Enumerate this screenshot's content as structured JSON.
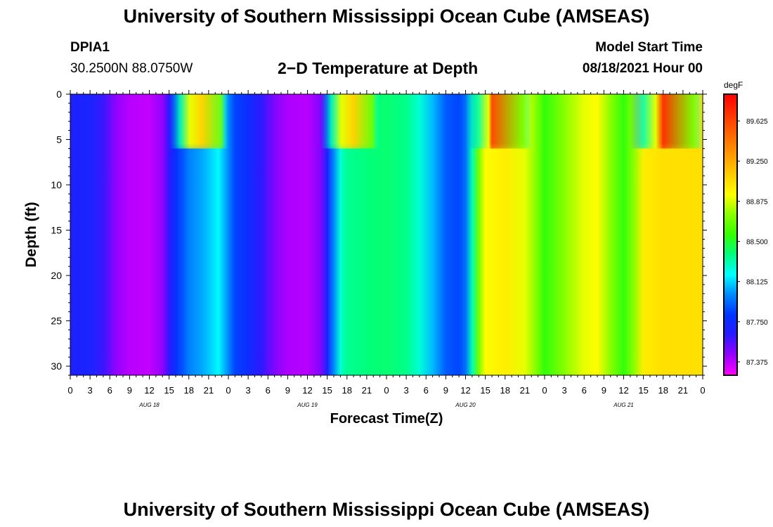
{
  "titles": {
    "top": "University of Southern Mississippi Ocean Cube (AMSEAS)",
    "bottom": "University of Southern Mississippi Ocean Cube (AMSEAS)"
  },
  "header": {
    "station": "DPIA1",
    "coords": "30.2500N  88.0750W",
    "plot_title": "2−D Temperature at Depth",
    "model_start_label": "Model Start Time",
    "model_start_value": "08/18/2021 Hour 00"
  },
  "chart_data": {
    "type": "heatmap",
    "title": "2−D Temperature at Depth",
    "xlabel": "Forecast Time(Z)",
    "ylabel": "Depth (ft)",
    "x_unit": "forecast hour",
    "xlim": [
      0,
      96
    ],
    "ylim": [
      31,
      0
    ],
    "x_ticks": [
      0,
      3,
      6,
      9,
      12,
      15,
      18,
      21,
      24,
      27,
      30,
      33,
      36,
      39,
      42,
      45,
      48,
      51,
      54,
      57,
      60,
      63,
      66,
      69,
      72,
      75,
      78,
      81,
      84,
      87,
      90,
      93,
      96
    ],
    "x_tick_labels": [
      "0",
      "3",
      "6",
      "9",
      "12",
      "15",
      "18",
      "21",
      "0",
      "3",
      "6",
      "9",
      "12",
      "15",
      "18",
      "21",
      "0",
      "3",
      "6",
      "9",
      "12",
      "15",
      "18",
      "21",
      "0",
      "3",
      "6",
      "9",
      "12",
      "15",
      "18",
      "21",
      "0"
    ],
    "day_labels": [
      {
        "label": "AUG 18",
        "hour": 12
      },
      {
        "label": "AUG 19",
        "hour": 36
      },
      {
        "label": "AUG 20",
        "hour": 60
      },
      {
        "label": "AUG 21",
        "hour": 84
      }
    ],
    "y_ticks": [
      0,
      5,
      10,
      15,
      20,
      25,
      30
    ],
    "colorbar": {
      "unit": "degF",
      "min": 87.25,
      "max": 89.875,
      "labels": [
        "89.625",
        "89.250",
        "88.875",
        "88.500",
        "88.125",
        "87.750",
        "87.375"
      ],
      "label_values": [
        89.625,
        89.25,
        88.875,
        88.5,
        88.125,
        87.75,
        87.375
      ],
      "colors": [
        "#ff00ff",
        "#9900ff",
        "#2a1aff",
        "#0033ff",
        "#0088ff",
        "#00ffff",
        "#00ff80",
        "#33ff00",
        "#88ff00",
        "#ffff00",
        "#ffcc00",
        "#ff9900",
        "#ff6600",
        "#ff3300",
        "#ff0000"
      ]
    },
    "time_profile": [
      {
        "t": 0,
        "v": 87.68
      },
      {
        "t": 3,
        "v": 87.7
      },
      {
        "t": 5,
        "v": 87.6
      },
      {
        "t": 7,
        "v": 87.45
      },
      {
        "t": 9,
        "v": 87.38
      },
      {
        "t": 12,
        "v": 87.36
      },
      {
        "t": 14,
        "v": 87.45
      },
      {
        "t": 15,
        "v": 87.62
      },
      {
        "t": 16,
        "v": 87.78
      },
      {
        "t": 17,
        "v": 87.88
      },
      {
        "t": 18,
        "v": 87.98
      },
      {
        "t": 20,
        "v": 88.05
      },
      {
        "t": 21,
        "v": 88.1
      },
      {
        "t": 22.5,
        "v": 88.18
      },
      {
        "t": 24,
        "v": 88.0
      },
      {
        "t": 25,
        "v": 87.85
      },
      {
        "t": 27,
        "v": 87.75
      },
      {
        "t": 29,
        "v": 87.62
      },
      {
        "t": 31,
        "v": 87.48
      },
      {
        "t": 33,
        "v": 87.4
      },
      {
        "t": 36,
        "v": 87.38
      },
      {
        "t": 38,
        "v": 87.48
      },
      {
        "t": 39,
        "v": 87.7
      },
      {
        "t": 40,
        "v": 88.0
      },
      {
        "t": 41,
        "v": 88.25
      },
      {
        "t": 42,
        "v": 88.35
      },
      {
        "t": 45,
        "v": 88.38
      },
      {
        "t": 48,
        "v": 88.4
      },
      {
        "t": 51,
        "v": 88.36
      },
      {
        "t": 53,
        "v": 88.25
      },
      {
        "t": 55,
        "v": 88.08
      },
      {
        "t": 57,
        "v": 87.9
      },
      {
        "t": 59,
        "v": 87.85
      },
      {
        "t": 60,
        "v": 87.95
      },
      {
        "t": 61,
        "v": 88.3
      },
      {
        "t": 62,
        "v": 88.7
      },
      {
        "t": 63,
        "v": 88.95
      },
      {
        "t": 66,
        "v": 89.0
      },
      {
        "t": 69,
        "v": 88.9
      },
      {
        "t": 71,
        "v": 88.7
      },
      {
        "t": 72,
        "v": 88.55
      },
      {
        "t": 75,
        "v": 88.75
      },
      {
        "t": 78,
        "v": 88.9
      },
      {
        "t": 80,
        "v": 88.95
      },
      {
        "t": 82,
        "v": 88.75
      },
      {
        "t": 84,
        "v": 88.55
      },
      {
        "t": 85.5,
        "v": 88.75
      },
      {
        "t": 87,
        "v": 89.0
      },
      {
        "t": 90,
        "v": 89.05
      },
      {
        "t": 93,
        "v": 89.05
      },
      {
        "t": 96,
        "v": 89.05
      }
    ],
    "surface_warm_events": [
      {
        "t_start": 15,
        "t_peak": 20,
        "t_end": 24,
        "depth_ft": 6,
        "peak_value": 89.1
      },
      {
        "t_start": 38,
        "t_peak": 43,
        "t_end": 47,
        "depth_ft": 6,
        "peak_value": 89.1
      },
      {
        "t_start": 60,
        "t_peak": 64,
        "t_end": 70,
        "depth_ft": 6,
        "peak_value": 89.6
      },
      {
        "t_start": 85,
        "t_peak": 90,
        "t_end": 96,
        "depth_ft": 6,
        "peak_value": 89.7
      }
    ]
  }
}
